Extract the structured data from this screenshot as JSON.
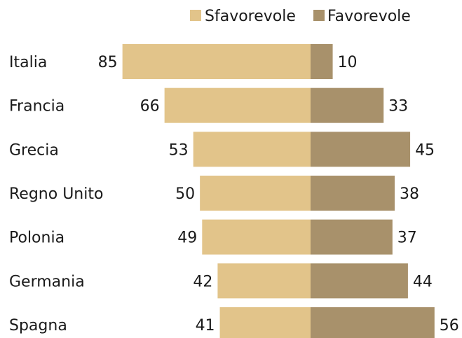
{
  "chart_data": {
    "type": "bar",
    "orientation": "diverging-horizontal",
    "categories": [
      "Italia",
      "Francia",
      "Grecia",
      "Regno Unito",
      "Polonia",
      "Germania",
      "Spagna"
    ],
    "series": [
      {
        "name": "Sfavorevole",
        "color": "#e2c48a",
        "direction": "left",
        "values": [
          85,
          66,
          53,
          50,
          49,
          42,
          41
        ]
      },
      {
        "name": "Favorevole",
        "color": "#a8916b",
        "direction": "right",
        "values": [
          10,
          33,
          45,
          38,
          37,
          44,
          56
        ]
      }
    ],
    "title": "",
    "xlabel": "",
    "ylabel": "",
    "legend_position": "top",
    "grid": false
  }
}
